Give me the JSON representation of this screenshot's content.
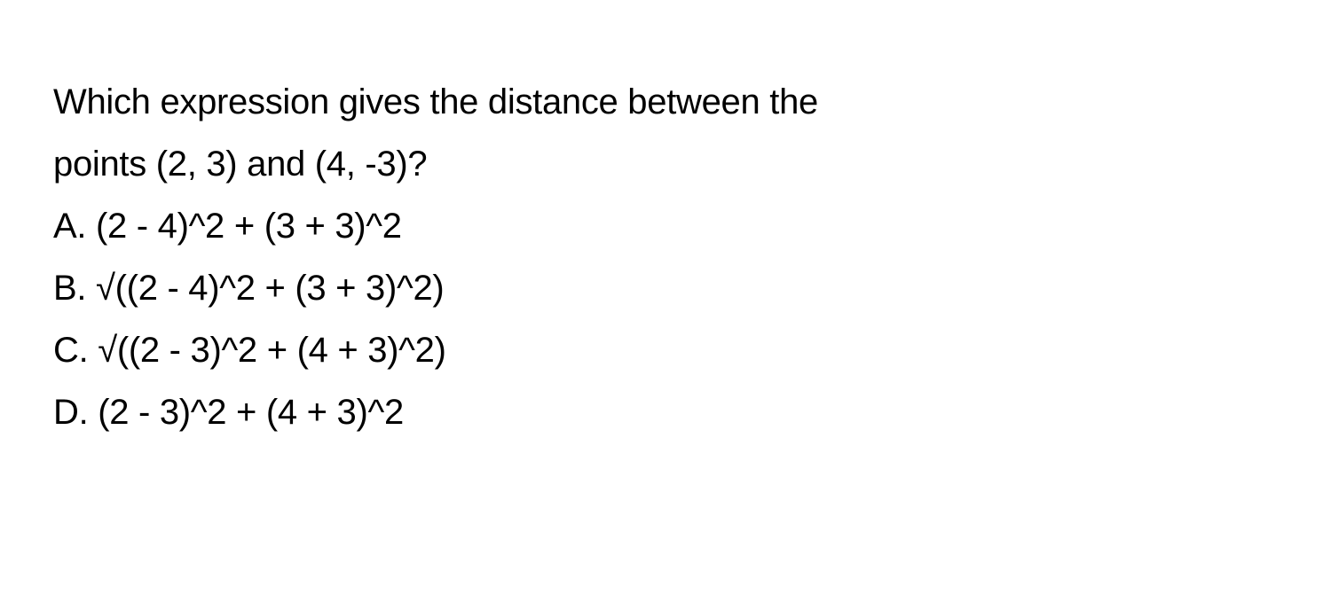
{
  "question": {
    "line1": "Which expression gives the distance between the",
    "line2": "points (2, 3) and (4, -3)?"
  },
  "options": {
    "a": "A. (2 - 4)^2 + (3 + 3)^2",
    "b": "B. √((2 - 4)^2 + (3 + 3)^2)",
    "c": "C. √((2 - 3)^2 + (4 + 3)^2)",
    "d": "D. (2 - 3)^2 + (4 + 3)^2"
  },
  "styling": {
    "font_size": 40,
    "line_height": 1.75,
    "text_color": "#000000",
    "background_color": "#ffffff",
    "font_family": "-apple-system, BlinkMacSystemFont, Segoe UI, Helvetica, Arial, sans-serif"
  }
}
